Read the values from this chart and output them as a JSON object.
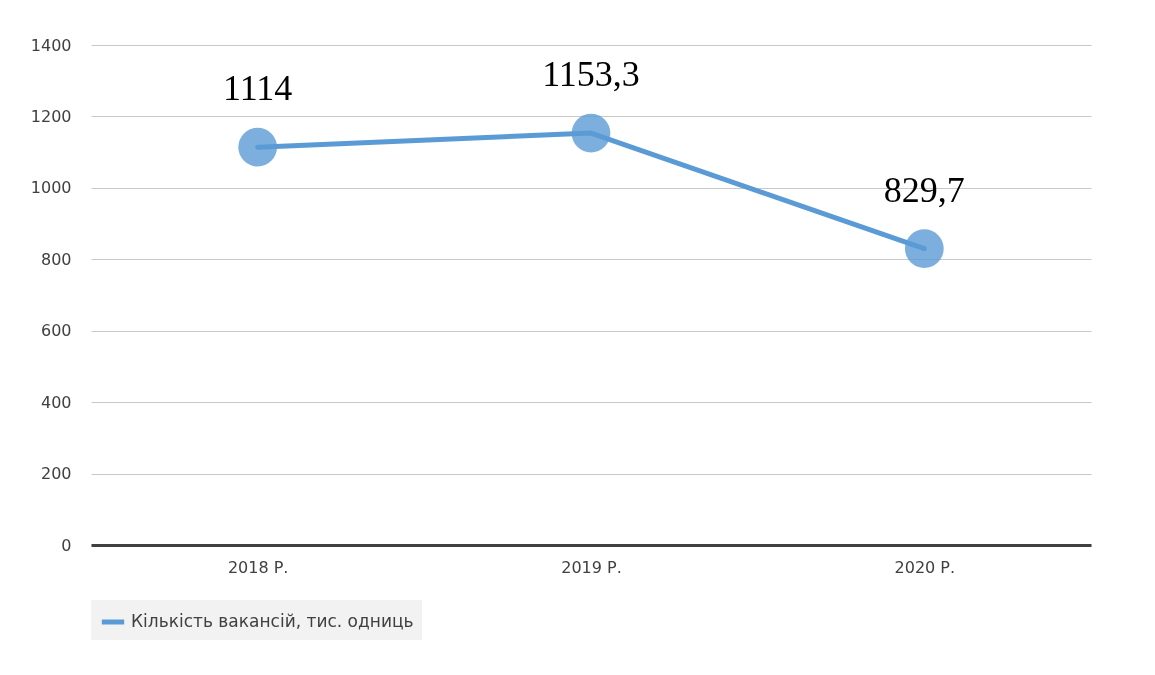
{
  "chart_data": {
    "type": "line",
    "categories": [
      "2018 Р.",
      "2019 Р.",
      "2020 Р."
    ],
    "series": [
      {
        "name": "Кількість вакансій, тис. одниць",
        "color": "#5b9bd5",
        "values": [
          1114,
          1153.3,
          829.7
        ],
        "value_labels": [
          "1114",
          "1153,3",
          "829,7"
        ]
      }
    ],
    "ylim": [
      0,
      1400
    ],
    "yticks": [
      0,
      200,
      400,
      600,
      800,
      1000,
      1200,
      1400
    ],
    "grid": "y",
    "legend": "bottom",
    "marker": "circle"
  }
}
